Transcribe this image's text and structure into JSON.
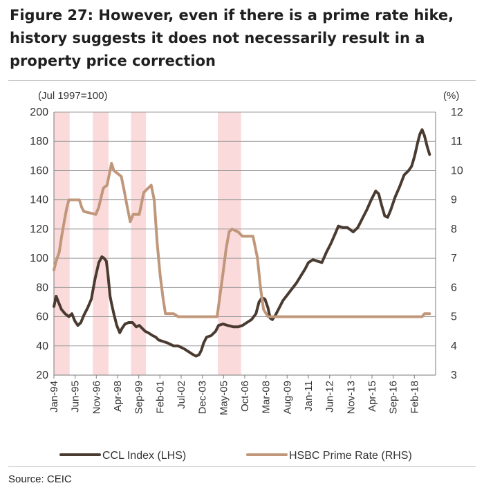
{
  "title": "Figure 27: However, even if there is a prime rate hike, history suggests it does not necessarily result in a property price correction",
  "source": "Source:  CEIC",
  "chart_data": {
    "type": "line",
    "left_axis_label": "(Jul 1997=100)",
    "right_axis_label": "(%)",
    "left_ylim": [
      20,
      200
    ],
    "left_ticks": [
      20,
      40,
      60,
      80,
      100,
      120,
      140,
      160,
      180,
      200
    ],
    "right_ylim": [
      3,
      12
    ],
    "right_ticks": [
      3,
      4,
      5,
      6,
      7,
      8,
      9,
      10,
      11,
      12
    ],
    "xlim": [
      1994.0,
      2019.5
    ],
    "x_tick_labels": [
      "Jan-94",
      "Jun-95",
      "Nov-96",
      "Apr-98",
      "Sep-99",
      "Feb-01",
      "Jul-02",
      "Dec-03",
      "May-05",
      "Oct-06",
      "Mar-08",
      "Aug-09",
      "Jan-11",
      "Jun-12",
      "Nov-13",
      "Apr-15",
      "Sep-16",
      "Feb-18"
    ],
    "x_tick_values": [
      1994.0,
      1995.42,
      1996.83,
      1998.25,
      1999.67,
      2001.08,
      2002.5,
      2003.92,
      2005.33,
      2006.75,
      2008.17,
      2009.58,
      2011.0,
      2012.42,
      2013.83,
      2015.25,
      2016.67,
      2018.08
    ],
    "shaded_periods": [
      [
        1994.0,
        1995.05
      ],
      [
        1996.6,
        1997.65
      ],
      [
        1999.15,
        2000.15
      ],
      [
        2004.95,
        2006.5
      ]
    ],
    "grid": true,
    "legend_position": "bottom",
    "series": [
      {
        "name": "CCL Index (LHS)",
        "axis": "left",
        "color": "#4a3b31",
        "points": [
          [
            1994.0,
            67
          ],
          [
            1994.15,
            74
          ],
          [
            1994.3,
            70
          ],
          [
            1994.5,
            65
          ],
          [
            1994.75,
            62
          ],
          [
            1995.0,
            60
          ],
          [
            1995.2,
            62
          ],
          [
            1995.4,
            57
          ],
          [
            1995.6,
            54
          ],
          [
            1995.8,
            56
          ],
          [
            1996.0,
            61
          ],
          [
            1996.25,
            66
          ],
          [
            1996.5,
            72
          ],
          [
            1996.75,
            86
          ],
          [
            1997.0,
            97
          ],
          [
            1997.2,
            101
          ],
          [
            1997.35,
            100
          ],
          [
            1997.5,
            98
          ],
          [
            1997.6,
            90
          ],
          [
            1997.75,
            74
          ],
          [
            1997.85,
            69
          ],
          [
            1998.0,
            62
          ],
          [
            1998.2,
            54
          ],
          [
            1998.4,
            49
          ],
          [
            1998.55,
            52
          ],
          [
            1998.75,
            55
          ],
          [
            1999.0,
            56
          ],
          [
            1999.25,
            56
          ],
          [
            1999.5,
            53
          ],
          [
            1999.7,
            54
          ],
          [
            1999.9,
            52
          ],
          [
            2000.1,
            50
          ],
          [
            2000.3,
            49
          ],
          [
            2000.6,
            47
          ],
          [
            2000.8,
            46
          ],
          [
            2001.0,
            44
          ],
          [
            2001.3,
            43
          ],
          [
            2001.6,
            42
          ],
          [
            2002.0,
            40
          ],
          [
            2002.3,
            40
          ],
          [
            2002.7,
            38
          ],
          [
            2003.0,
            36
          ],
          [
            2003.3,
            34
          ],
          [
            2003.5,
            33
          ],
          [
            2003.7,
            34
          ],
          [
            2003.85,
            37
          ],
          [
            2004.0,
            42
          ],
          [
            2004.2,
            46
          ],
          [
            2004.5,
            47
          ],
          [
            2004.8,
            50
          ],
          [
            2005.0,
            54
          ],
          [
            2005.3,
            55
          ],
          [
            2005.6,
            54
          ],
          [
            2006.0,
            53
          ],
          [
            2006.3,
            53
          ],
          [
            2006.6,
            54
          ],
          [
            2006.9,
            56
          ],
          [
            2007.2,
            58
          ],
          [
            2007.5,
            62
          ],
          [
            2007.7,
            70
          ],
          [
            2007.9,
            73
          ],
          [
            2008.1,
            72
          ],
          [
            2008.3,
            66
          ],
          [
            2008.45,
            59
          ],
          [
            2008.6,
            58
          ],
          [
            2008.8,
            61
          ],
          [
            2009.0,
            65
          ],
          [
            2009.3,
            71
          ],
          [
            2009.6,
            75
          ],
          [
            2009.9,
            79
          ],
          [
            2010.2,
            83
          ],
          [
            2010.5,
            88
          ],
          [
            2010.8,
            93
          ],
          [
            2011.0,
            97
          ],
          [
            2011.3,
            99
          ],
          [
            2011.6,
            98
          ],
          [
            2011.9,
            97
          ],
          [
            2012.2,
            104
          ],
          [
            2012.5,
            110
          ],
          [
            2012.8,
            117
          ],
          [
            2013.0,
            122
          ],
          [
            2013.3,
            121
          ],
          [
            2013.6,
            121
          ],
          [
            2014.0,
            118
          ],
          [
            2014.3,
            121
          ],
          [
            2014.6,
            127
          ],
          [
            2014.9,
            133
          ],
          [
            2015.2,
            140
          ],
          [
            2015.5,
            146
          ],
          [
            2015.7,
            144
          ],
          [
            2015.9,
            136
          ],
          [
            2016.1,
            129
          ],
          [
            2016.3,
            128
          ],
          [
            2016.5,
            133
          ],
          [
            2016.8,
            142
          ],
          [
            2017.1,
            149
          ],
          [
            2017.4,
            157
          ],
          [
            2017.7,
            160
          ],
          [
            2017.9,
            163
          ],
          [
            2018.1,
            170
          ],
          [
            2018.3,
            179
          ],
          [
            2018.45,
            185
          ],
          [
            2018.6,
            188
          ],
          [
            2018.75,
            184
          ],
          [
            2018.95,
            176
          ],
          [
            2019.1,
            171
          ]
        ]
      },
      {
        "name": "HSBC Prime Rate (RHS)",
        "axis": "right",
        "color": "#c0977a",
        "points": [
          [
            1994.0,
            6.6
          ],
          [
            1994.15,
            6.9
          ],
          [
            1994.35,
            7.2
          ],
          [
            1994.5,
            7.7
          ],
          [
            1994.7,
            8.3
          ],
          [
            1994.85,
            8.7
          ],
          [
            1995.0,
            9.0
          ],
          [
            1995.7,
            9.0
          ],
          [
            1995.85,
            8.75
          ],
          [
            1996.0,
            8.6
          ],
          [
            1996.8,
            8.5
          ],
          [
            1997.0,
            8.75
          ],
          [
            1997.3,
            9.4
          ],
          [
            1997.55,
            9.5
          ],
          [
            1997.75,
            10.0
          ],
          [
            1997.85,
            10.25
          ],
          [
            1998.0,
            10.0
          ],
          [
            1998.5,
            9.8
          ],
          [
            1998.7,
            9.3
          ],
          [
            1998.9,
            8.75
          ],
          [
            1999.1,
            8.25
          ],
          [
            1999.3,
            8.5
          ],
          [
            1999.7,
            8.5
          ],
          [
            2000.0,
            9.25
          ],
          [
            2000.5,
            9.5
          ],
          [
            2000.7,
            9.0
          ],
          [
            2000.9,
            7.5
          ],
          [
            2001.1,
            6.4
          ],
          [
            2001.3,
            5.6
          ],
          [
            2001.45,
            5.1
          ],
          [
            2002.0,
            5.1
          ],
          [
            2002.3,
            5.0
          ],
          [
            2004.9,
            5.0
          ],
          [
            2005.1,
            5.75
          ],
          [
            2005.3,
            6.5
          ],
          [
            2005.5,
            7.3
          ],
          [
            2005.7,
            7.9
          ],
          [
            2005.9,
            8.0
          ],
          [
            2006.3,
            7.9
          ],
          [
            2006.6,
            7.75
          ],
          [
            2007.3,
            7.75
          ],
          [
            2007.6,
            7.0
          ],
          [
            2007.8,
            6.0
          ],
          [
            2008.0,
            5.25
          ],
          [
            2008.3,
            5.0
          ],
          [
            2018.6,
            5.0
          ],
          [
            2018.75,
            5.1
          ],
          [
            2019.1,
            5.1
          ]
        ]
      }
    ]
  }
}
